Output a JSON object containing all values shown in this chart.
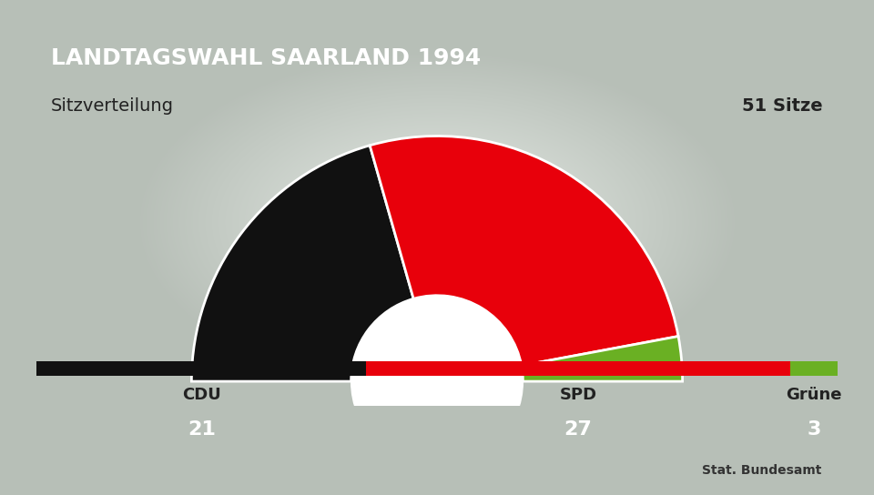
{
  "title": "LANDTAGSWAHL SAARLAND 1994",
  "subtitle_left": "Sitzverteilung",
  "subtitle_right": "51 Sitze",
  "parties": [
    "CDU",
    "SPD",
    "Grüne"
  ],
  "seats": [
    21,
    27,
    3
  ],
  "total_seats": 51,
  "colors": [
    "#111111",
    "#E8000B",
    "#6ab023"
  ],
  "bar_colors": [
    "#111111",
    "#E8000B",
    "#6ab023"
  ],
  "title_bg": "#1a3a6b",
  "title_fg": "#ffffff",
  "numbers_bg": "#4a7fa5",
  "numbers_fg": "#ffffff",
  "source_text": "Stat. Bundesamt"
}
